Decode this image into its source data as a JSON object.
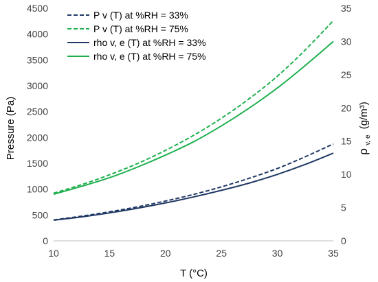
{
  "chart_data": {
    "type": "line",
    "xlabel": "T (°C)",
    "ylabel": "Pressure (Pa)",
    "y2label_main": "ρ",
    "y2label_sub": "v, e",
    "y2label_units": "(g/m³)",
    "xlim": [
      10,
      35
    ],
    "ylim": [
      0,
      4500
    ],
    "y2lim": [
      0,
      35
    ],
    "xticks": [
      10,
      15,
      20,
      25,
      30,
      35
    ],
    "yticks": [
      0,
      500,
      1000,
      1500,
      2000,
      2500,
      3000,
      3500,
      4000,
      4500
    ],
    "y2ticks": [
      0,
      5,
      10,
      15,
      20,
      25,
      30,
      35
    ],
    "grid": false,
    "legend_position": "top-left",
    "x": [
      10,
      12.5,
      15,
      17.5,
      20,
      22.5,
      25,
      27.5,
      30,
      32.5,
      35
    ],
    "series": [
      {
        "name": "P v (T) at %RH = 33%",
        "axis": "left",
        "style": "dashed",
        "color": "#1f3864",
        "values": [
          405,
          478,
          562,
          658,
          770,
          897,
          1044,
          1212,
          1400,
          1628,
          1875
        ]
      },
      {
        "name": "P v (T) at %RH = 75%",
        "axis": "left",
        "style": "dashed",
        "color": "#1eb04e",
        "values": [
          922,
          1087,
          1278,
          1495,
          1750,
          2040,
          2372,
          2753,
          3185,
          3695,
          4260
        ]
      },
      {
        "name": "rho v, e (T) at %RH = 33%",
        "axis": "right",
        "style": "solid",
        "color": "#1f3864",
        "values": [
          3.1,
          3.6,
          4.2,
          4.9,
          5.7,
          6.6,
          7.6,
          8.7,
          10.0,
          11.5,
          13.2
        ]
      },
      {
        "name": "rho v, e (T) at %RH = 75%",
        "axis": "right",
        "style": "solid",
        "color": "#1eb04e",
        "values": [
          7.0,
          8.2,
          9.5,
          11.1,
          12.9,
          14.9,
          17.3,
          20.0,
          23.0,
          26.4,
          30.0
        ]
      }
    ]
  }
}
